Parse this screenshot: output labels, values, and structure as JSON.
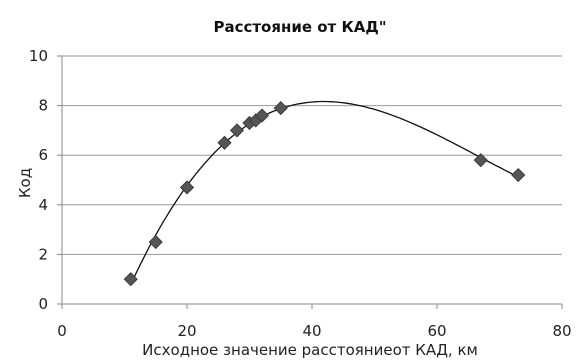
{
  "chart_data": {
    "type": "scatter",
    "title": "Расстояние от КАД\"",
    "xlabel": "Исходное значение расстояниеот КАД, км",
    "ylabel": "Код",
    "xlim": [
      0,
      80
    ],
    "ylim": [
      0,
      10
    ],
    "xticks": [
      "0",
      "20",
      "40",
      "60",
      "80"
    ],
    "yticks": [
      "0",
      "2",
      "4",
      "6",
      "8",
      "10"
    ],
    "grid": "horizontal",
    "legend": "none",
    "marker": "diamond",
    "marker_color": "#555555",
    "trendline": {
      "type": "polynomial",
      "degree": 3,
      "color": "#111111"
    },
    "series": [
      {
        "points": [
          [
            11,
            1.0
          ],
          [
            15,
            2.5
          ],
          [
            20,
            4.7
          ],
          [
            26,
            6.5
          ],
          [
            28,
            7.0
          ],
          [
            30,
            7.3
          ],
          [
            31,
            7.4
          ],
          [
            32,
            7.6
          ],
          [
            35,
            7.9
          ],
          [
            67,
            5.8
          ],
          [
            73,
            5.2
          ]
        ]
      }
    ]
  }
}
